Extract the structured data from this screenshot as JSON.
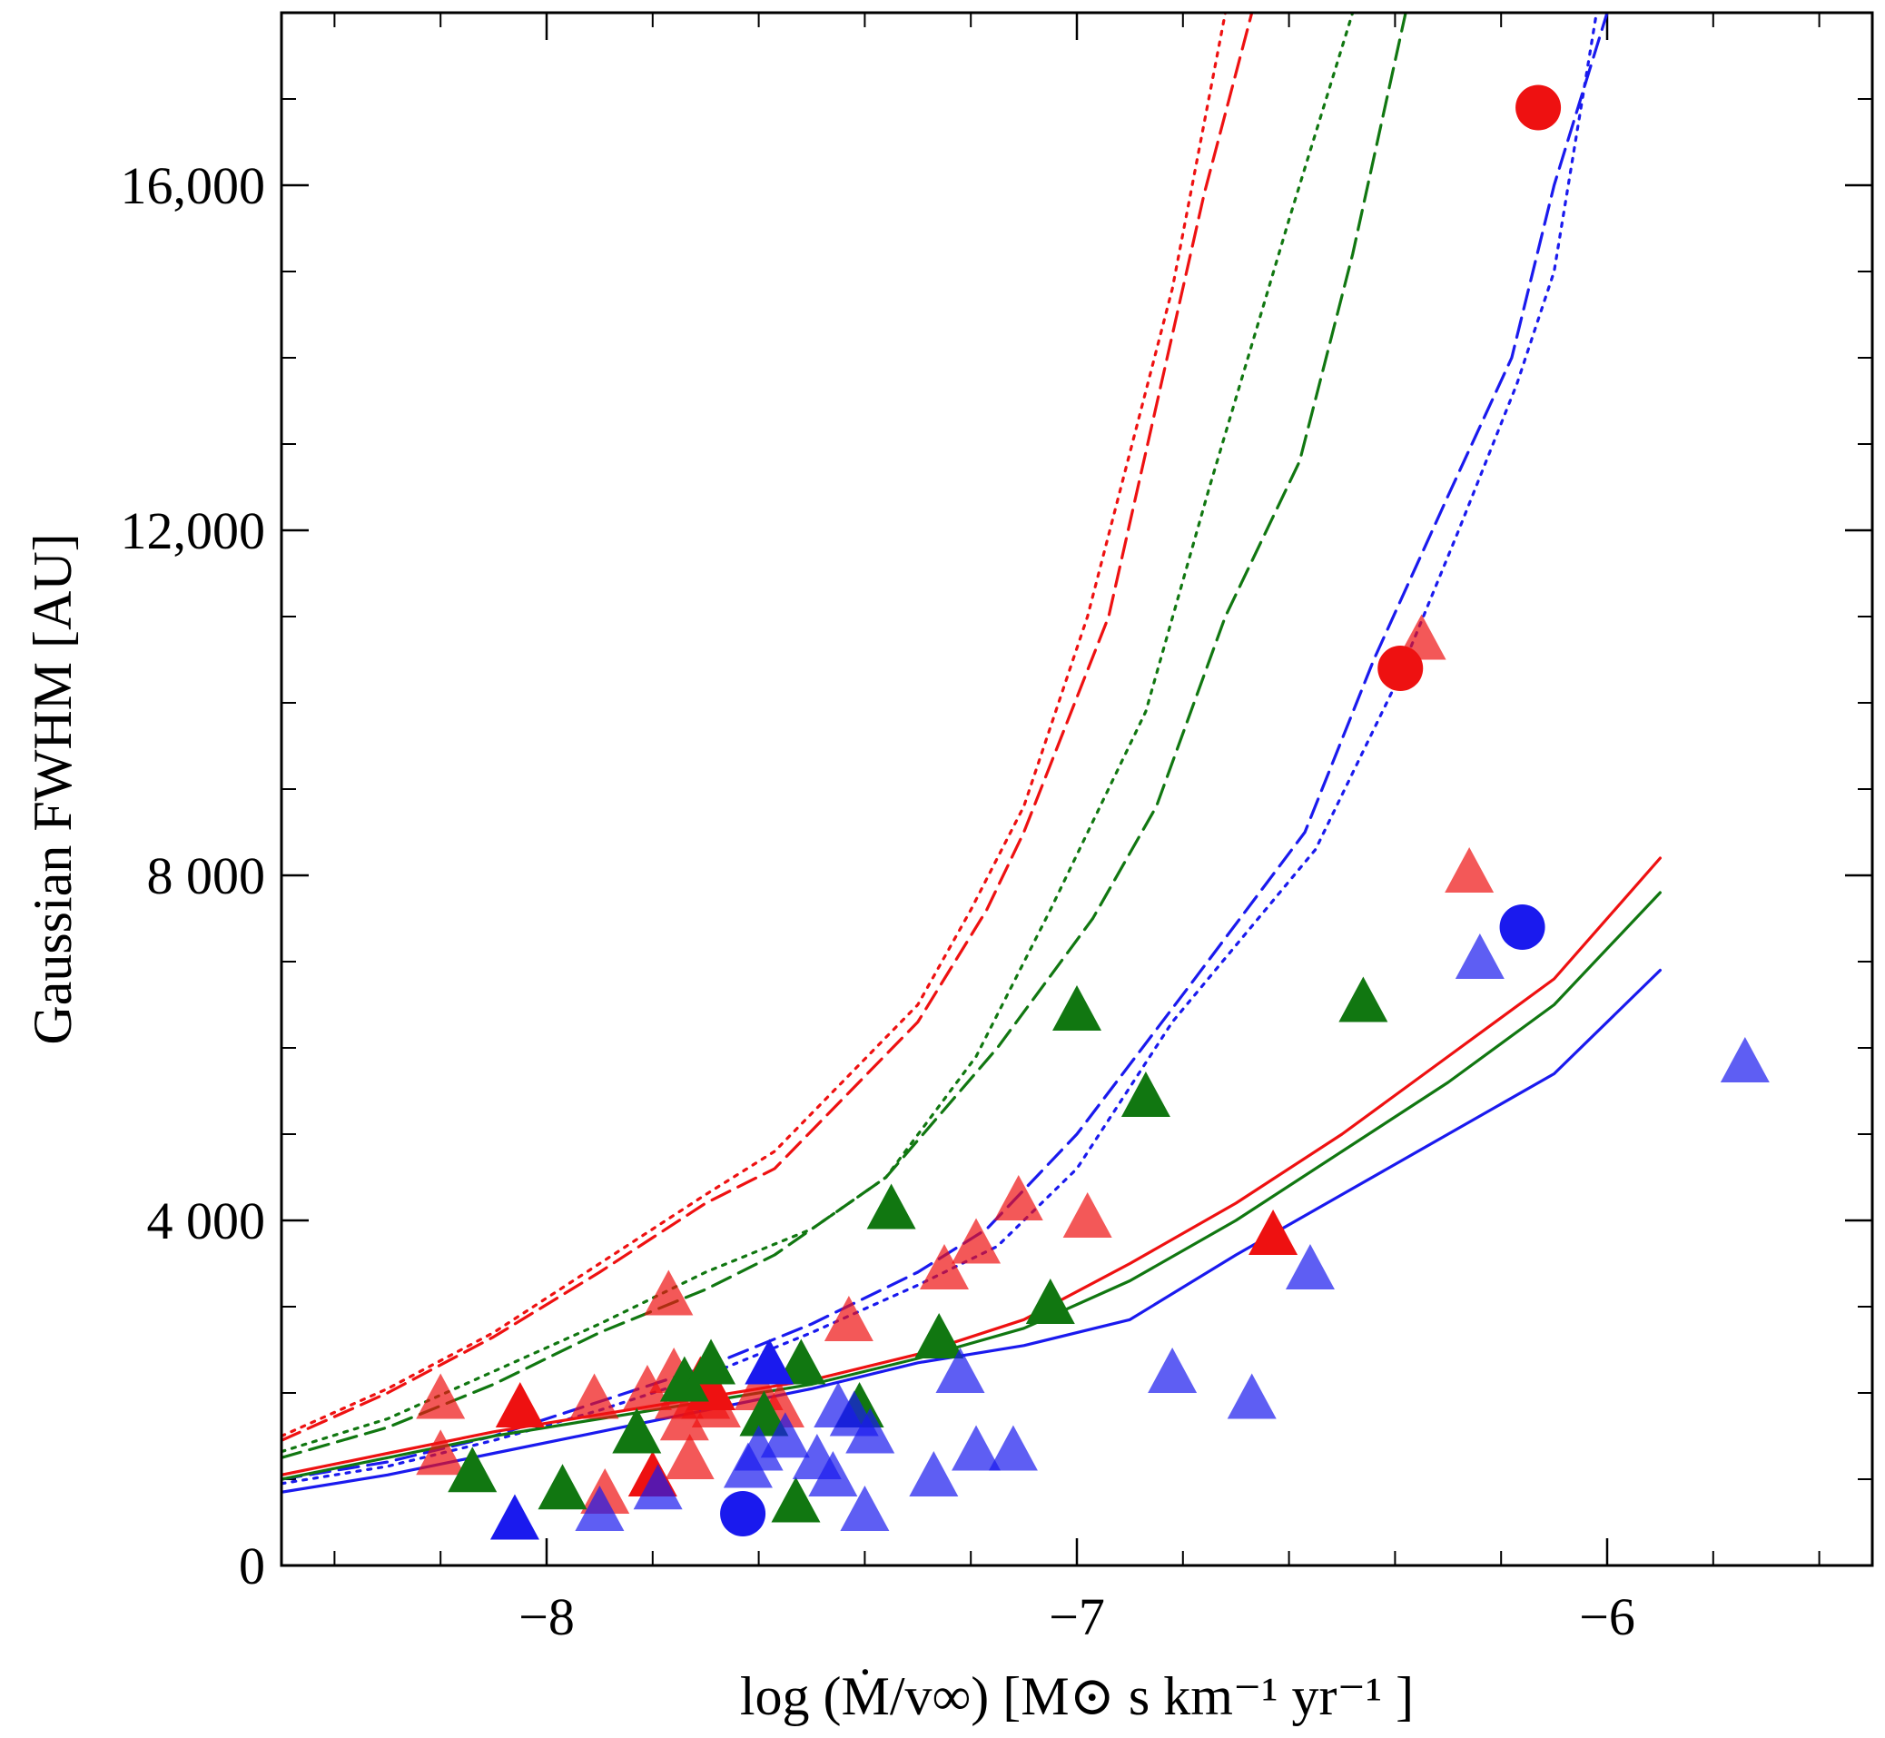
{
  "chart_data": {
    "type": "scatter",
    "title": "",
    "xlabel": "log (Ṁ/v∞) [M⊙ s km⁻¹ yr⁻¹ ]",
    "ylabel": "Gaussian FWHM [AU]",
    "xlim": [
      -8.5,
      -5.5
    ],
    "ylim": [
      0,
      18000
    ],
    "x_ticks": [
      {
        "value": -8,
        "label": "−8"
      },
      {
        "value": -7,
        "label": "−7"
      },
      {
        "value": -6,
        "label": "−6"
      }
    ],
    "x_minor_ticks": [
      -8.4,
      -8.2,
      -7.8,
      -7.6,
      -7.4,
      -7.2,
      -6.8,
      -6.6,
      -6.4,
      -6.2,
      -5.8,
      -5.6
    ],
    "y_ticks": [
      {
        "value": 0,
        "label": "0"
      },
      {
        "value": 4000,
        "label": "4 000"
      },
      {
        "value": 8000,
        "label": "8 000"
      },
      {
        "value": 12000,
        "label": "12,000"
      },
      {
        "value": 16000,
        "label": "16,000"
      }
    ],
    "y_minor_ticks": [
      1000,
      2000,
      3000,
      5000,
      6000,
      7000,
      9000,
      10000,
      11000,
      13000,
      14000,
      15000,
      17000
    ],
    "colors": {
      "red": "#ee1111",
      "green": "#117711",
      "blue": "#1a1aee"
    },
    "lines": [
      {
        "color": "red",
        "style": "dotted",
        "points": [
          [
            -8.5,
            1500
          ],
          [
            -8.3,
            2050
          ],
          [
            -8.1,
            2700
          ],
          [
            -7.9,
            3500
          ],
          [
            -7.7,
            4300
          ],
          [
            -7.57,
            4800
          ],
          [
            -7.3,
            6500
          ],
          [
            -7.2,
            7600
          ],
          [
            -7.1,
            8800
          ],
          [
            -6.98,
            11000
          ],
          [
            -6.82,
            14800
          ],
          [
            -6.72,
            18000
          ]
        ]
      },
      {
        "color": "red",
        "style": "dashed",
        "points": [
          [
            -8.5,
            1450
          ],
          [
            -8.3,
            2000
          ],
          [
            -8.1,
            2650
          ],
          [
            -7.9,
            3400
          ],
          [
            -7.7,
            4200
          ],
          [
            -7.57,
            4600
          ],
          [
            -7.3,
            6300
          ],
          [
            -7.17,
            7600
          ],
          [
            -7.1,
            8500
          ],
          [
            -6.94,
            11000
          ],
          [
            -6.76,
            15900
          ],
          [
            -6.67,
            18000
          ]
        ]
      },
      {
        "color": "green",
        "style": "dotted",
        "points": [
          [
            -8.5,
            1320
          ],
          [
            -8.3,
            1700
          ],
          [
            -8.1,
            2250
          ],
          [
            -7.9,
            2800
          ],
          [
            -7.7,
            3400
          ],
          [
            -7.5,
            3900
          ],
          [
            -7.36,
            4500
          ],
          [
            -7.19,
            5900
          ],
          [
            -7.05,
            7600
          ],
          [
            -6.87,
            9900
          ],
          [
            -6.75,
            12500
          ],
          [
            -6.6,
            15600
          ],
          [
            -6.48,
            18000
          ]
        ]
      },
      {
        "color": "green",
        "style": "dashed",
        "points": [
          [
            -8.5,
            1250
          ],
          [
            -8.3,
            1600
          ],
          [
            -8.1,
            2100
          ],
          [
            -7.9,
            2700
          ],
          [
            -7.7,
            3200
          ],
          [
            -7.57,
            3600
          ],
          [
            -7.36,
            4500
          ],
          [
            -7.15,
            6000
          ],
          [
            -6.97,
            7500
          ],
          [
            -6.85,
            8800
          ],
          [
            -6.72,
            11000
          ],
          [
            -6.58,
            12800
          ],
          [
            -6.48,
            15200
          ],
          [
            -6.38,
            18000
          ]
        ]
      },
      {
        "color": "blue",
        "style": "dashed",
        "points": [
          [
            -8.5,
            1000
          ],
          [
            -8.3,
            1200
          ],
          [
            -8.1,
            1500
          ],
          [
            -7.9,
            1900
          ],
          [
            -7.7,
            2300
          ],
          [
            -7.5,
            2800
          ],
          [
            -7.3,
            3400
          ],
          [
            -7.17,
            3900
          ],
          [
            -7.0,
            5000
          ],
          [
            -6.79,
            6700
          ],
          [
            -6.57,
            8500
          ],
          [
            -6.44,
            10500
          ],
          [
            -6.3,
            12400
          ],
          [
            -6.18,
            14000
          ],
          [
            -6.1,
            16000
          ],
          [
            -6.0,
            18000
          ]
        ]
      },
      {
        "color": "blue",
        "style": "dotted",
        "points": [
          [
            -8.5,
            950
          ],
          [
            -8.3,
            1150
          ],
          [
            -8.1,
            1450
          ],
          [
            -7.9,
            1800
          ],
          [
            -7.7,
            2200
          ],
          [
            -7.5,
            2700
          ],
          [
            -7.3,
            3250
          ],
          [
            -7.15,
            3700
          ],
          [
            -7.0,
            4600
          ],
          [
            -6.82,
            6300
          ],
          [
            -6.55,
            8300
          ],
          [
            -6.4,
            10200
          ],
          [
            -6.28,
            12000
          ],
          [
            -6.17,
            13700
          ],
          [
            -6.1,
            15000
          ],
          [
            -6.02,
            18000
          ]
        ]
      },
      {
        "color": "red",
        "style": "solid",
        "points": [
          [
            -8.5,
            1050
          ],
          [
            -8.3,
            1300
          ],
          [
            -8.1,
            1550
          ],
          [
            -7.9,
            1750
          ],
          [
            -7.7,
            1950
          ],
          [
            -7.5,
            2150
          ],
          [
            -7.3,
            2450
          ],
          [
            -7.1,
            2850
          ],
          [
            -6.9,
            3500
          ],
          [
            -6.7,
            4200
          ],
          [
            -6.5,
            5000
          ],
          [
            -6.3,
            5900
          ],
          [
            -6.1,
            6800
          ],
          [
            -5.9,
            8200
          ]
        ]
      },
      {
        "color": "green",
        "style": "solid",
        "points": [
          [
            -8.5,
            1000
          ],
          [
            -8.3,
            1250
          ],
          [
            -8.1,
            1500
          ],
          [
            -7.9,
            1700
          ],
          [
            -7.7,
            1900
          ],
          [
            -7.5,
            2100
          ],
          [
            -7.3,
            2400
          ],
          [
            -7.1,
            2750
          ],
          [
            -6.9,
            3300
          ],
          [
            -6.7,
            4000
          ],
          [
            -6.5,
            4800
          ],
          [
            -6.3,
            5600
          ],
          [
            -6.1,
            6500
          ],
          [
            -5.9,
            7800
          ]
        ]
      },
      {
        "color": "blue",
        "style": "solid",
        "points": [
          [
            -8.5,
            850
          ],
          [
            -8.3,
            1050
          ],
          [
            -8.1,
            1300
          ],
          [
            -7.9,
            1550
          ],
          [
            -7.7,
            1800
          ],
          [
            -7.5,
            2050
          ],
          [
            -7.3,
            2350
          ],
          [
            -7.1,
            2550
          ],
          [
            -6.9,
            2850
          ],
          [
            -6.7,
            3600
          ],
          [
            -6.5,
            4300
          ],
          [
            -6.3,
            5000
          ],
          [
            -6.1,
            5700
          ],
          [
            -5.9,
            6900
          ]
        ]
      }
    ],
    "series": [
      {
        "name": "red triangles (light)",
        "color": "red",
        "marker": "triangle",
        "alpha": 0.7,
        "points": [
          [
            -8.2,
            1900
          ],
          [
            -8.2,
            1250
          ],
          [
            -7.91,
            1900
          ],
          [
            -7.89,
            800
          ],
          [
            -7.81,
            2000
          ],
          [
            -7.77,
            3100
          ],
          [
            -7.76,
            2200
          ],
          [
            -7.75,
            1900
          ],
          [
            -7.74,
            1650
          ],
          [
            -7.73,
            1200
          ],
          [
            -7.7,
            1900
          ],
          [
            -7.68,
            1800
          ],
          [
            -7.6,
            2000
          ],
          [
            -7.56,
            1800
          ],
          [
            -7.43,
            2800
          ],
          [
            -7.25,
            3400
          ],
          [
            -7.19,
            3700
          ],
          [
            -7.11,
            4200
          ],
          [
            -6.98,
            4000
          ],
          [
            -6.35,
            10700
          ],
          [
            -6.26,
            8000
          ]
        ]
      },
      {
        "name": "red triangles",
        "color": "red",
        "marker": "triangle",
        "alpha": 1.0,
        "points": [
          [
            -8.05,
            1800
          ],
          [
            -7.8,
            1000
          ],
          [
            -7.71,
            2100
          ],
          [
            -7.69,
            2000
          ],
          [
            -6.63,
            3800
          ]
        ]
      },
      {
        "name": "red circles",
        "color": "red",
        "marker": "circle",
        "alpha": 1.0,
        "points": [
          [
            -6.39,
            10400
          ],
          [
            -6.13,
            16900
          ]
        ]
      },
      {
        "name": "green triangles",
        "color": "green",
        "marker": "triangle",
        "alpha": 1.0,
        "points": [
          [
            -8.14,
            1050
          ],
          [
            -7.97,
            850
          ],
          [
            -7.83,
            1500
          ],
          [
            -7.74,
            2100
          ],
          [
            -7.69,
            2300
          ],
          [
            -7.59,
            1700
          ],
          [
            -7.53,
            700
          ],
          [
            -7.52,
            2300
          ],
          [
            -7.41,
            1800
          ],
          [
            -7.35,
            4100
          ],
          [
            -7.26,
            2600
          ],
          [
            -7.05,
            3000
          ],
          [
            -7.0,
            6400
          ],
          [
            -6.87,
            5400
          ],
          [
            -6.46,
            6500
          ]
        ]
      },
      {
        "name": "blue triangles (light)",
        "color": "blue",
        "marker": "triangle",
        "alpha": 0.7,
        "points": [
          [
            -7.9,
            600
          ],
          [
            -7.79,
            850
          ],
          [
            -7.62,
            1100
          ],
          [
            -7.6,
            1300
          ],
          [
            -7.55,
            1450
          ],
          [
            -7.49,
            1200
          ],
          [
            -7.46,
            1000
          ],
          [
            -7.45,
            1800
          ],
          [
            -7.42,
            1700
          ],
          [
            -7.4,
            600
          ],
          [
            -7.39,
            1500
          ],
          [
            -7.27,
            1000
          ],
          [
            -7.22,
            2200
          ],
          [
            -7.19,
            1300
          ],
          [
            -7.12,
            1300
          ],
          [
            -6.82,
            2200
          ],
          [
            -6.67,
            1900
          ],
          [
            -6.56,
            3400
          ],
          [
            -6.24,
            7000
          ],
          [
            -5.74,
            5800
          ]
        ]
      },
      {
        "name": "blue triangles",
        "color": "blue",
        "marker": "triangle",
        "alpha": 1.0,
        "points": [
          [
            -8.06,
            500
          ],
          [
            -7.58,
            2300
          ]
        ]
      },
      {
        "name": "blue circles",
        "color": "blue",
        "marker": "circle",
        "alpha": 1.0,
        "points": [
          [
            -7.63,
            600
          ],
          [
            -6.16,
            7400
          ]
        ]
      }
    ]
  }
}
